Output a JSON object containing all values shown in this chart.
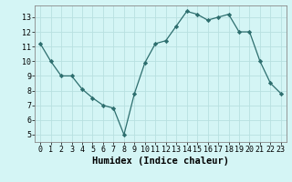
{
  "x": [
    0,
    1,
    2,
    3,
    4,
    5,
    6,
    7,
    8,
    9,
    10,
    11,
    12,
    13,
    14,
    15,
    16,
    17,
    18,
    19,
    20,
    21,
    22,
    23
  ],
  "y": [
    11.2,
    10.0,
    9.0,
    9.0,
    8.1,
    7.5,
    7.0,
    6.8,
    5.0,
    7.8,
    9.9,
    11.2,
    11.4,
    12.4,
    13.4,
    13.2,
    12.8,
    13.0,
    13.2,
    12.0,
    12.0,
    10.0,
    8.5,
    7.8
  ],
  "line_color": "#2d6e6e",
  "marker": "D",
  "marker_size": 2.2,
  "bg_color": "#d4f5f5",
  "grid_color": "#b8e0e0",
  "xlabel": "Humidex (Indice chaleur)",
  "xlabel_fontsize": 7.5,
  "tick_fontsize": 6,
  "ylim": [
    4.5,
    13.8
  ],
  "xlim": [
    -0.5,
    23.5
  ],
  "yticks": [
    5,
    6,
    7,
    8,
    9,
    10,
    11,
    12,
    13
  ],
  "xticks": [
    0,
    1,
    2,
    3,
    4,
    5,
    6,
    7,
    8,
    9,
    10,
    11,
    12,
    13,
    14,
    15,
    16,
    17,
    18,
    19,
    20,
    21,
    22,
    23
  ]
}
